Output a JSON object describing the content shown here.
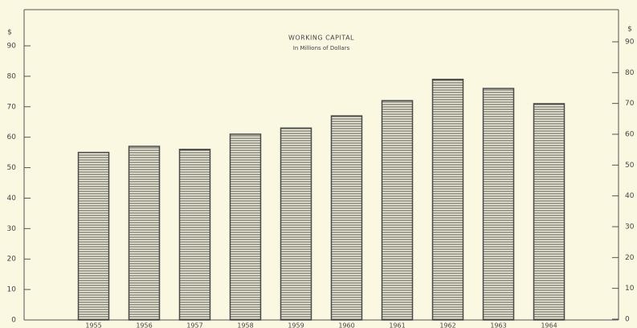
{
  "chart_data": {
    "type": "bar",
    "title": "WORKING CAPITAL",
    "subtitle": "In Millions of Dollars",
    "y_axis_label": "$",
    "y2_axis_label": "$",
    "categories": [
      "1955",
      "1956",
      "1957",
      "1958",
      "1959",
      "1960",
      "1961",
      "1962",
      "1963",
      "1964"
    ],
    "values": [
      55,
      57,
      56,
      61,
      63,
      67,
      72,
      79,
      76,
      71
    ],
    "color": "#4a4a4a",
    "ylim": [
      0,
      90
    ],
    "yticks": [
      0,
      10,
      20,
      30,
      40,
      50,
      60,
      70,
      80,
      90
    ],
    "y2lim": [
      0,
      90
    ],
    "y2ticks": [
      0,
      10,
      20,
      30,
      40,
      50,
      60,
      70,
      80,
      90
    ]
  }
}
